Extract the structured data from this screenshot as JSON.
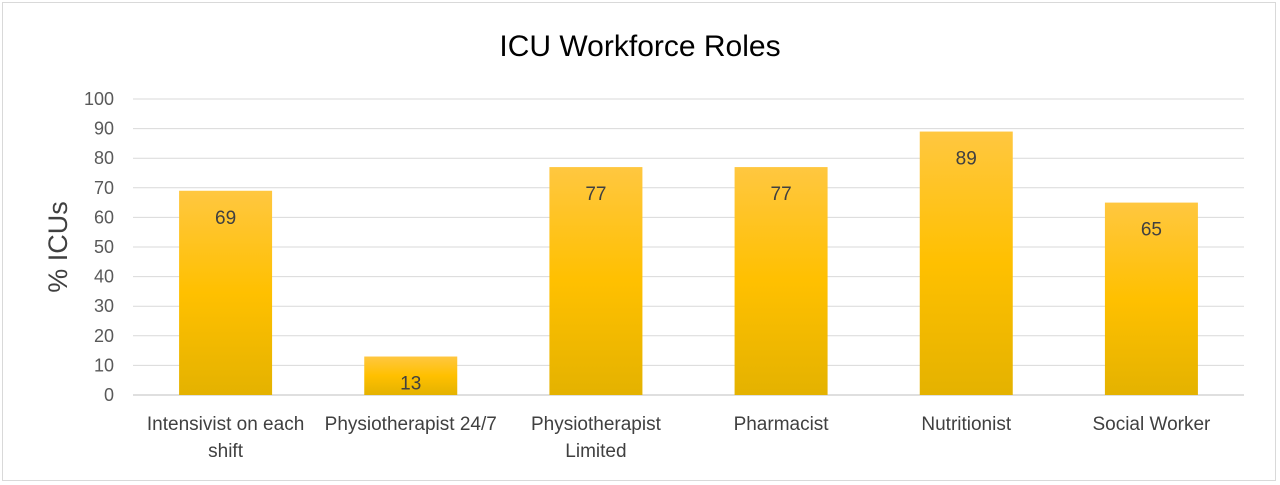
{
  "chart_data": {
    "type": "bar",
    "title": "ICU Workforce Roles",
    "ylabel": "% ICUs",
    "xlabel": "",
    "ylim": [
      0,
      100
    ],
    "yticks": [
      0,
      10,
      20,
      30,
      40,
      50,
      60,
      70,
      80,
      90,
      100
    ],
    "grid": true,
    "legend": "none",
    "categories": [
      [
        "Intensivist on each",
        "shift"
      ],
      [
        "Physiotherapist 24/7"
      ],
      [
        "Physiotherapist",
        "Limited"
      ],
      [
        "Pharmacist"
      ],
      [
        "Nutritionist"
      ],
      [
        "Social Worker"
      ]
    ],
    "values": [
      69,
      13,
      77,
      77,
      89,
      65
    ],
    "bar_color_top": "#ffc740",
    "bar_color_mid": "#ffc000",
    "bar_color_bottom": "#e4b200"
  }
}
